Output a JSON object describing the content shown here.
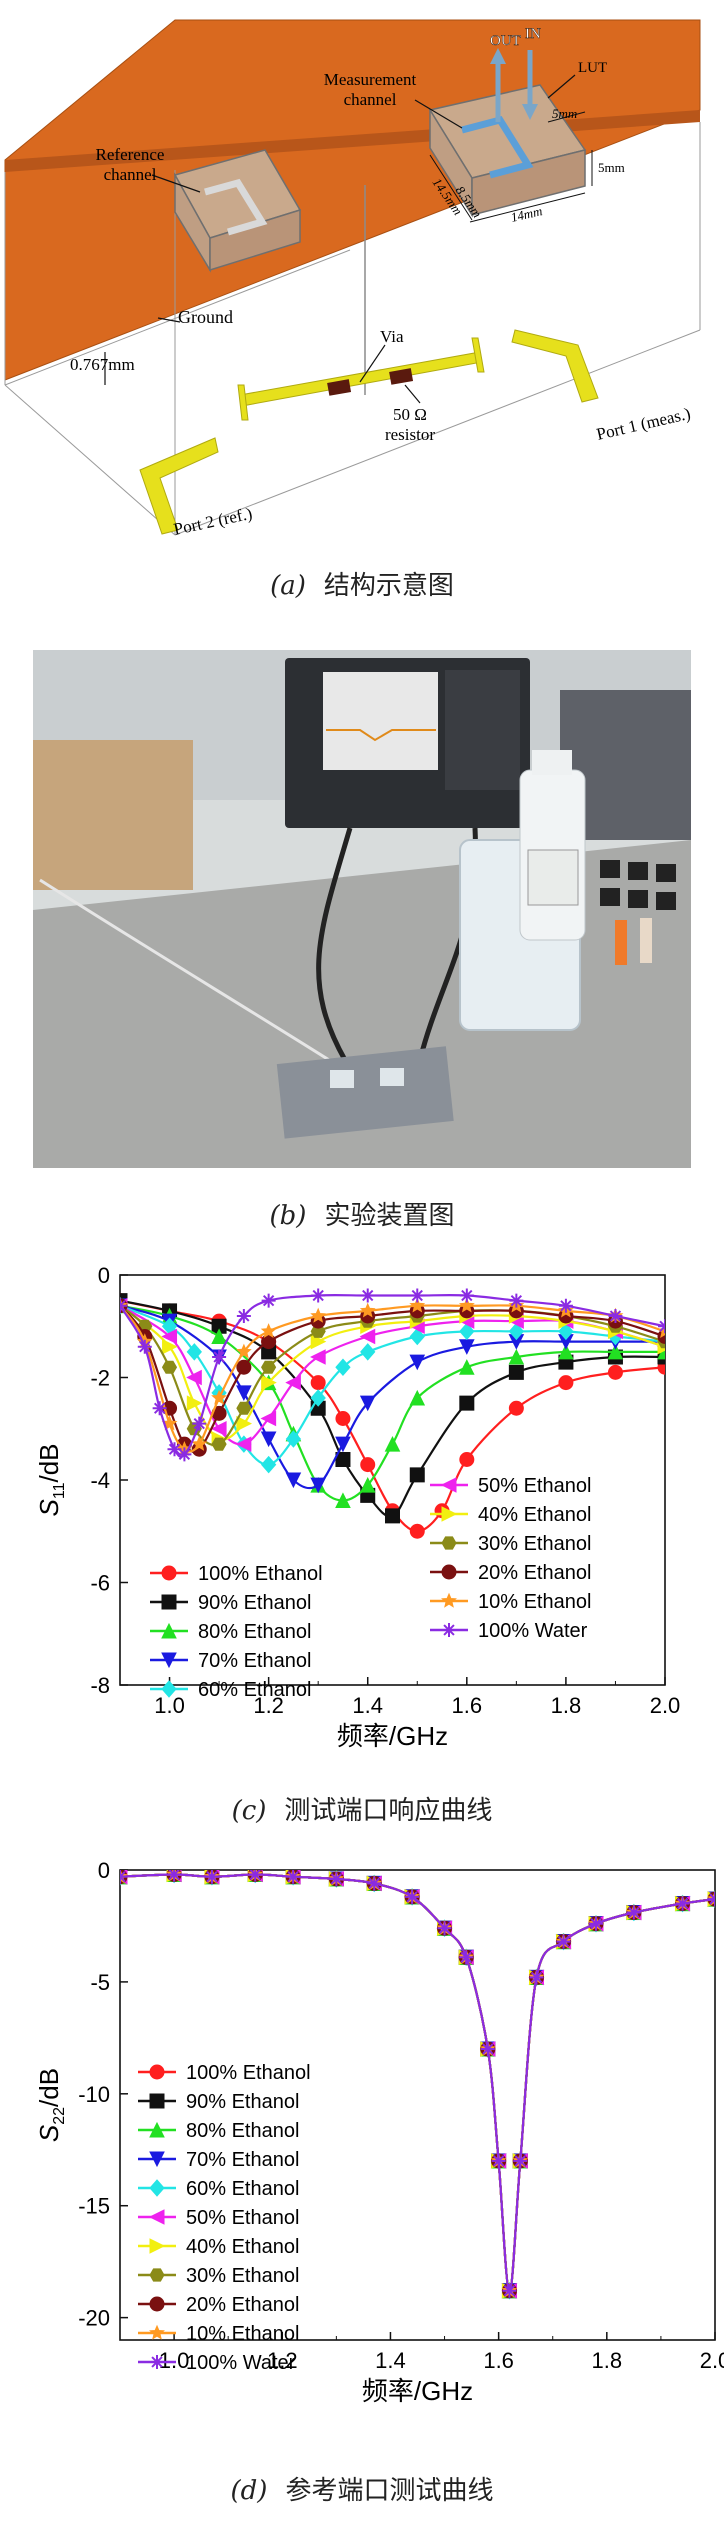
{
  "panel_a": {
    "caption_letter": "(a)",
    "caption_text": "结构示意图",
    "labels": {
      "reference": "Reference\nchannel",
      "measurement": "Measurement\nchannel",
      "out": "OUT",
      "in": "IN",
      "lut": "LUT",
      "dim_5mm_a": "5mm",
      "dim_5mm_b": "5mm",
      "dim_85": "8.5mm",
      "dim_145": "14.5mm",
      "dim_14": "14mm",
      "ground": "Ground",
      "thickness": "0.767mm",
      "via": "Via",
      "resistor": "50 Ω\nresistor",
      "port1": "Port 1 (meas.)",
      "port2": "Port 2 (ref.)"
    },
    "colors": {
      "board": "#d9691f",
      "line": "#e6e01c",
      "resistor": "#5a1a0e"
    }
  },
  "panel_b": {
    "caption_letter": "(b)",
    "caption_text": "实验装置图"
  },
  "panel_c": {
    "caption_letter": "(c)",
    "caption_text": "测试端口响应曲线"
  },
  "panel_d": {
    "caption_letter": "(d)",
    "caption_text": "参考端口测试曲线"
  },
  "chart_data": [
    {
      "type": "line",
      "id": "s11",
      "xlabel": "频率/GHz",
      "ylabel_main": "S",
      "ylabel_sub": "11",
      "ylabel_unit": "/dB",
      "xlim": [
        0.9,
        2.0
      ],
      "ylim": [
        -8,
        0
      ],
      "xticks": [
        "1.0",
        "1.2",
        "1.4",
        "1.6",
        "1.8",
        "2.0"
      ],
      "yticks": [
        "0",
        "-2",
        "-4",
        "-6",
        "-8"
      ],
      "series": [
        {
          "name": "100% Ethanol",
          "color": "#ff1f1f",
          "marker": "circle",
          "x": [
            0.9,
            1.0,
            1.1,
            1.2,
            1.3,
            1.35,
            1.4,
            1.45,
            1.5,
            1.55,
            1.6,
            1.7,
            1.8,
            1.9,
            2.0
          ],
          "y": [
            -0.5,
            -0.7,
            -0.9,
            -1.3,
            -2.1,
            -2.8,
            -3.7,
            -4.6,
            -5.0,
            -4.6,
            -3.6,
            -2.6,
            -2.1,
            -1.9,
            -1.8
          ]
        },
        {
          "name": "90% Ethanol",
          "color": "#111111",
          "marker": "square",
          "x": [
            0.9,
            1.0,
            1.1,
            1.2,
            1.3,
            1.35,
            1.4,
            1.45,
            1.5,
            1.6,
            1.7,
            1.8,
            1.9,
            2.0
          ],
          "y": [
            -0.5,
            -0.7,
            -1.0,
            -1.5,
            -2.6,
            -3.6,
            -4.3,
            -4.7,
            -3.9,
            -2.5,
            -1.9,
            -1.7,
            -1.6,
            -1.6
          ]
        },
        {
          "name": "80% Ethanol",
          "color": "#22e022",
          "marker": "triangle-up",
          "x": [
            0.9,
            1.0,
            1.1,
            1.2,
            1.25,
            1.3,
            1.35,
            1.4,
            1.45,
            1.5,
            1.6,
            1.7,
            1.8,
            1.9,
            2.0
          ],
          "y": [
            -0.6,
            -0.8,
            -1.2,
            -2.1,
            -3.1,
            -4.1,
            -4.4,
            -4.1,
            -3.3,
            -2.4,
            -1.8,
            -1.6,
            -1.5,
            -1.5,
            -1.5
          ]
        },
        {
          "name": "70% Ethanol",
          "color": "#1a1ae0",
          "marker": "triangle-down",
          "x": [
            0.9,
            1.0,
            1.1,
            1.15,
            1.2,
            1.25,
            1.3,
            1.35,
            1.4,
            1.5,
            1.6,
            1.7,
            1.8,
            1.9,
            2.0
          ],
          "y": [
            -0.6,
            -0.9,
            -1.6,
            -2.3,
            -3.2,
            -4.0,
            -4.1,
            -3.3,
            -2.5,
            -1.7,
            -1.4,
            -1.3,
            -1.3,
            -1.3,
            -1.3
          ]
        },
        {
          "name": "60% Ethanol",
          "color": "#22e5e5",
          "marker": "diamond",
          "x": [
            0.9,
            1.0,
            1.05,
            1.1,
            1.15,
            1.2,
            1.25,
            1.3,
            1.35,
            1.4,
            1.5,
            1.6,
            1.7,
            1.8,
            1.9,
            2.0
          ],
          "y": [
            -0.6,
            -1.0,
            -1.5,
            -2.3,
            -3.3,
            -3.7,
            -3.2,
            -2.4,
            -1.8,
            -1.5,
            -1.2,
            -1.1,
            -1.1,
            -1.1,
            -1.2,
            -1.3
          ]
        },
        {
          "name": "50% Ethanol",
          "color": "#ee22ee",
          "marker": "triangle-left",
          "x": [
            0.9,
            1.0,
            1.05,
            1.1,
            1.15,
            1.2,
            1.25,
            1.3,
            1.4,
            1.5,
            1.6,
            1.7,
            1.8,
            1.9,
            2.0
          ],
          "y": [
            -0.6,
            -1.2,
            -2.0,
            -3.0,
            -3.3,
            -2.8,
            -2.1,
            -1.6,
            -1.2,
            -1.0,
            -0.9,
            -0.9,
            -0.9,
            -1.1,
            -1.4
          ]
        },
        {
          "name": "40% Ethanol",
          "color": "#f2ef10",
          "marker": "triangle-right",
          "x": [
            0.9,
            1.0,
            1.05,
            1.1,
            1.15,
            1.2,
            1.3,
            1.4,
            1.5,
            1.6,
            1.7,
            1.8,
            1.9,
            2.0
          ],
          "y": [
            -0.6,
            -1.4,
            -2.5,
            -3.2,
            -2.9,
            -2.1,
            -1.3,
            -1.0,
            -0.9,
            -0.8,
            -0.8,
            -0.9,
            -1.1,
            -1.4
          ]
        },
        {
          "name": "30% Ethanol",
          "color": "#8b8b18",
          "marker": "hexagon",
          "x": [
            0.9,
            0.95,
            1.0,
            1.05,
            1.1,
            1.15,
            1.2,
            1.3,
            1.4,
            1.5,
            1.6,
            1.7,
            1.8,
            1.9,
            2.0
          ],
          "y": [
            -0.6,
            -1.0,
            -1.8,
            -3.0,
            -3.3,
            -2.6,
            -1.8,
            -1.1,
            -0.9,
            -0.8,
            -0.7,
            -0.7,
            -0.8,
            -1.0,
            -1.3
          ]
        },
        {
          "name": "20% Ethanol",
          "color": "#7a1010",
          "marker": "circle",
          "x": [
            0.9,
            0.95,
            1.0,
            1.03,
            1.06,
            1.1,
            1.15,
            1.2,
            1.3,
            1.4,
            1.5,
            1.6,
            1.7,
            1.8,
            1.9,
            2.0
          ],
          "y": [
            -0.6,
            -1.2,
            -2.6,
            -3.3,
            -3.4,
            -2.7,
            -1.8,
            -1.3,
            -0.9,
            -0.8,
            -0.7,
            -0.7,
            -0.7,
            -0.8,
            -0.9,
            -1.2
          ]
        },
        {
          "name": "10% Ethanol",
          "color": "#ff9a22",
          "marker": "star",
          "x": [
            0.9,
            0.95,
            1.0,
            1.03,
            1.06,
            1.1,
            1.15,
            1.2,
            1.3,
            1.4,
            1.5,
            1.6,
            1.7,
            1.8,
            1.9,
            2.0
          ],
          "y": [
            -0.6,
            -1.3,
            -2.9,
            -3.4,
            -3.3,
            -2.4,
            -1.5,
            -1.1,
            -0.8,
            -0.7,
            -0.6,
            -0.6,
            -0.6,
            -0.7,
            -0.8,
            -1.1
          ]
        },
        {
          "name": "100% Water",
          "color": "#8a2be2",
          "marker": "asterisk",
          "x": [
            0.9,
            0.95,
            0.98,
            1.01,
            1.03,
            1.06,
            1.1,
            1.15,
            1.2,
            1.3,
            1.4,
            1.5,
            1.6,
            1.7,
            1.8,
            1.9,
            2.0
          ],
          "y": [
            -0.6,
            -1.4,
            -2.6,
            -3.4,
            -3.5,
            -2.9,
            -1.6,
            -0.8,
            -0.5,
            -0.4,
            -0.4,
            -0.4,
            -0.4,
            -0.5,
            -0.6,
            -0.8,
            -1.0
          ]
        }
      ]
    },
    {
      "type": "line",
      "id": "s22",
      "xlabel": "频率/GHz",
      "ylabel_main": "S",
      "ylabel_sub": "22",
      "ylabel_unit": "/dB",
      "xlim": [
        0.9,
        2.0
      ],
      "ylim": [
        -21,
        0
      ],
      "xticks": [
        "1.0",
        "1.2",
        "1.4",
        "1.6",
        "1.8",
        "2.0"
      ],
      "yticks": [
        "0",
        "-5",
        "-10",
        "-15",
        "-20"
      ],
      "overlap_note": "all series coincide",
      "x": [
        0.9,
        1.0,
        1.07,
        1.15,
        1.22,
        1.3,
        1.37,
        1.44,
        1.5,
        1.54,
        1.58,
        1.6,
        1.62,
        1.64,
        1.67,
        1.72,
        1.78,
        1.85,
        1.94,
        2.0
      ],
      "y": [
        -0.3,
        -0.2,
        -0.3,
        -0.2,
        -0.3,
        -0.4,
        -0.6,
        -1.2,
        -2.6,
        -3.9,
        -8.0,
        -13.0,
        -18.8,
        -13.0,
        -4.8,
        -3.2,
        -2.4,
        -1.9,
        -1.5,
        -1.3
      ],
      "series": [
        {
          "name": "100% Ethanol",
          "color": "#ff1f1f",
          "marker": "circle"
        },
        {
          "name": "90% Ethanol",
          "color": "#111111",
          "marker": "square"
        },
        {
          "name": "80% Ethanol",
          "color": "#22e022",
          "marker": "triangle-up"
        },
        {
          "name": "70% Ethanol",
          "color": "#1a1ae0",
          "marker": "triangle-down"
        },
        {
          "name": "60% Ethanol",
          "color": "#22e5e5",
          "marker": "diamond"
        },
        {
          "name": "50% Ethanol",
          "color": "#ee22ee",
          "marker": "triangle-left"
        },
        {
          "name": "40% Ethanol",
          "color": "#f2ef10",
          "marker": "triangle-right"
        },
        {
          "name": "30% Ethanol",
          "color": "#8b8b18",
          "marker": "hexagon"
        },
        {
          "name": "20% Ethanol",
          "color": "#7a1010",
          "marker": "circle"
        },
        {
          "name": "10% Ethanol",
          "color": "#ff9a22",
          "marker": "star"
        },
        {
          "name": "100% Water",
          "color": "#8a2be2",
          "marker": "asterisk"
        }
      ]
    }
  ]
}
